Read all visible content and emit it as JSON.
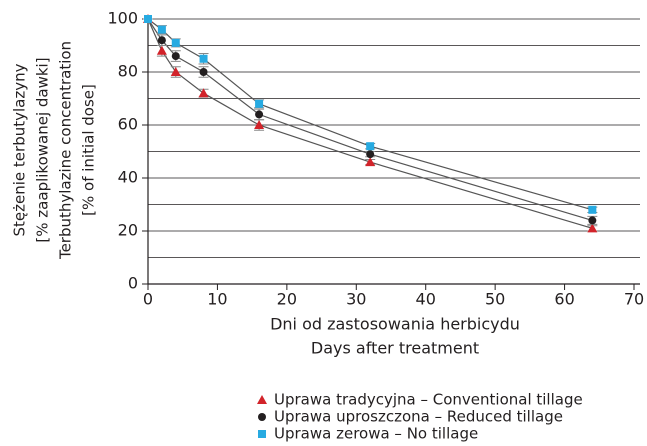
{
  "chart_data": {
    "type": "line",
    "y_label_lines": [
      "Stężenie terbutylazyny",
      "[% zaaplikowanej dawki]",
      "Terbuthylazine concentration",
      "[% of initial dose]"
    ],
    "x_label_lines": [
      "Dni od zastosowania herbicydu",
      "Days after treatment"
    ],
    "x": [
      0,
      2,
      4,
      8,
      16,
      32,
      64
    ],
    "series": [
      {
        "name": "Uprawa tradycyjna – Conventional tillage",
        "color": "#d2232a",
        "marker": "triangle",
        "values": [
          100,
          88,
          80,
          72,
          60,
          46,
          21
        ],
        "errors": [
          0,
          2,
          2,
          1.5,
          2,
          1,
          1
        ]
      },
      {
        "name": "Uprawa uproszczona – Reduced tillage",
        "color": "#231f20",
        "marker": "circle",
        "values": [
          100,
          92,
          86,
          80,
          64,
          49,
          24
        ],
        "errors": [
          0,
          2,
          2,
          2,
          2,
          1,
          1.5
        ]
      },
      {
        "name": "Uprawa zerowa – No tillage",
        "color": "#27aae1",
        "marker": "square",
        "values": [
          100,
          96,
          91,
          85,
          68,
          52,
          28
        ],
        "errors": [
          0,
          1.5,
          1.5,
          2,
          1.5,
          1,
          1
        ]
      }
    ],
    "xlim": [
      0,
      70
    ],
    "xticks": [
      0,
      10,
      20,
      30,
      40,
      50,
      60,
      70
    ],
    "ylim": [
      0,
      100
    ],
    "yticks": [
      0,
      20,
      40,
      60,
      80,
      100
    ],
    "ygrid": [
      10,
      20,
      30,
      40,
      50,
      60,
      70,
      80,
      90,
      100
    ],
    "legend": "bottom"
  }
}
